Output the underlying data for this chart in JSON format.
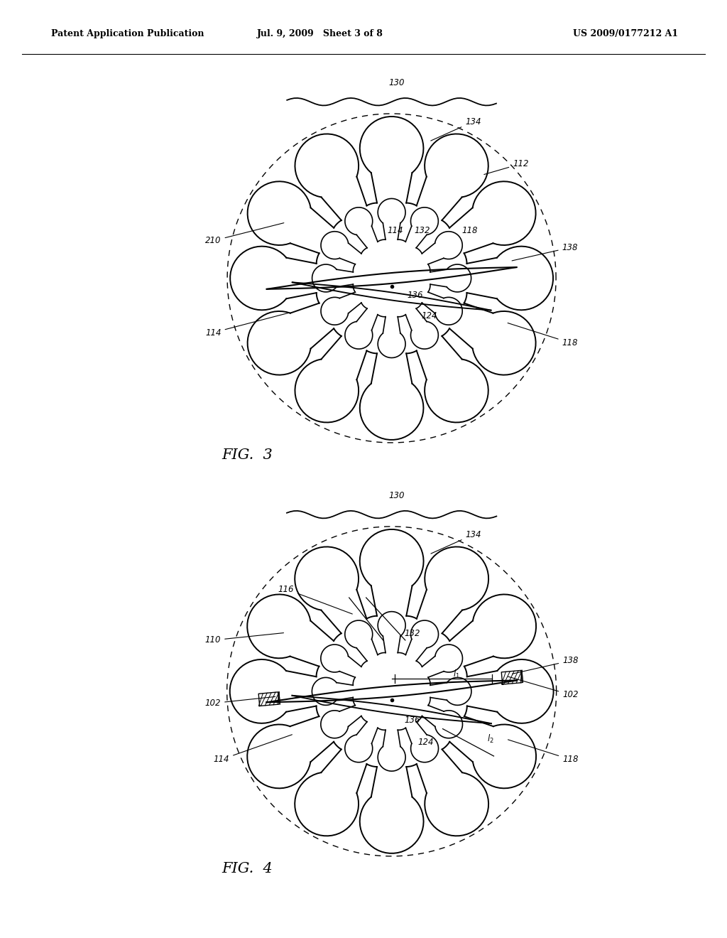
{
  "header_left": "Patent Application Publication",
  "header_mid": "Jul. 9, 2009   Sheet 3 of 8",
  "header_right": "US 2009/0177212 A1",
  "fig3_label": "FIG.  3",
  "fig4_label": "FIG.  4",
  "background_color": "#ffffff",
  "line_color": "#000000",
  "n_lobes": 12,
  "outer_r": 0.9,
  "device_r": 0.76
}
